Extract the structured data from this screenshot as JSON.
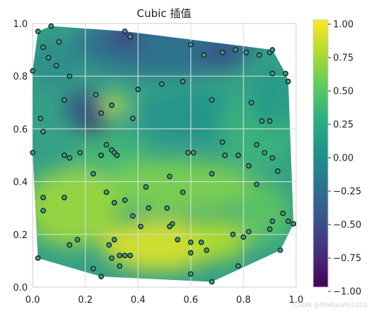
{
  "chart_data": {
    "type": "heatmap",
    "title": "Cubic 插值",
    "xlim": [
      0.0,
      1.0
    ],
    "ylim": [
      0.0,
      1.0
    ],
    "x_ticks": [
      "0.0",
      "0.2",
      "0.4",
      "0.6",
      "0.8",
      "1.0"
    ],
    "y_ticks": [
      "0.0",
      "0.2",
      "0.4",
      "0.6",
      "0.8",
      "1.0"
    ],
    "grid": true,
    "colormap": "viridis",
    "colorbar": {
      "range": [
        -1.0,
        1.0
      ],
      "ticks": [
        "1.00",
        "0.75",
        "0.50",
        "0.25",
        "0.00",
        "−0.25",
        "−0.50",
        "−0.75",
        "−1.00"
      ]
    },
    "points": [
      [
        0.02,
        0.97
      ],
      [
        0.07,
        0.99
      ],
      [
        0.04,
        0.91
      ],
      [
        0.06,
        0.87
      ],
      [
        0.09,
        0.84
      ],
      [
        0.1,
        0.93
      ],
      [
        0.0,
        0.82
      ],
      [
        0.14,
        0.8
      ],
      [
        0.35,
        0.97
      ],
      [
        0.37,
        0.95
      ],
      [
        0.6,
        0.92
      ],
      [
        0.65,
        0.88
      ],
      [
        0.72,
        0.89
      ],
      [
        0.77,
        0.9
      ],
      [
        0.81,
        0.89
      ],
      [
        0.86,
        0.88
      ],
      [
        0.9,
        0.89
      ],
      [
        0.91,
        0.9
      ],
      [
        0.96,
        0.81
      ],
      [
        0.91,
        0.81
      ],
      [
        0.97,
        0.78
      ],
      [
        0.12,
        0.71
      ],
      [
        0.24,
        0.73
      ],
      [
        0.26,
        0.66
      ],
      [
        0.3,
        0.69
      ],
      [
        0.38,
        0.64
      ],
      [
        0.4,
        0.75
      ],
      [
        0.49,
        0.77
      ],
      [
        0.57,
        0.78
      ],
      [
        0.68,
        0.71
      ],
      [
        0.83,
        0.7
      ],
      [
        0.87,
        0.63
      ],
      [
        0.9,
        0.63
      ],
      [
        0.03,
        0.64
      ],
      [
        0.04,
        0.59
      ],
      [
        0.0,
        0.51
      ],
      [
        0.26,
        0.5
      ],
      [
        0.28,
        0.54
      ],
      [
        0.3,
        0.52
      ],
      [
        0.31,
        0.51
      ],
      [
        0.32,
        0.5
      ],
      [
        0.12,
        0.5
      ],
      [
        0.18,
        0.51
      ],
      [
        0.14,
        0.49
      ],
      [
        0.23,
        0.43
      ],
      [
        0.52,
        0.42
      ],
      [
        0.59,
        0.51
      ],
      [
        0.61,
        0.51
      ],
      [
        0.72,
        0.55
      ],
      [
        0.73,
        0.5
      ],
      [
        0.78,
        0.5
      ],
      [
        0.82,
        0.46
      ],
      [
        0.85,
        0.54
      ],
      [
        0.88,
        0.51
      ],
      [
        0.91,
        0.49
      ],
      [
        0.93,
        0.44
      ],
      [
        0.85,
        0.39
      ],
      [
        0.68,
        0.43
      ],
      [
        0.57,
        0.36
      ],
      [
        0.43,
        0.38
      ],
      [
        0.28,
        0.36
      ],
      [
        0.31,
        0.32
      ],
      [
        0.35,
        0.33
      ],
      [
        0.04,
        0.34
      ],
      [
        0.04,
        0.29
      ],
      [
        0.12,
        0.34
      ],
      [
        0.38,
        0.27
      ],
      [
        0.41,
        0.23
      ],
      [
        0.44,
        0.3
      ],
      [
        0.51,
        0.3
      ],
      [
        0.53,
        0.24
      ],
      [
        0.52,
        0.23
      ],
      [
        0.55,
        0.18
      ],
      [
        0.6,
        0.17
      ],
      [
        0.64,
        0.17
      ],
      [
        0.6,
        0.13
      ],
      [
        0.66,
        0.14
      ],
      [
        0.76,
        0.2
      ],
      [
        0.8,
        0.19
      ],
      [
        0.82,
        0.21
      ],
      [
        0.9,
        0.22
      ],
      [
        0.91,
        0.25
      ],
      [
        0.95,
        0.28
      ],
      [
        0.97,
        0.25
      ],
      [
        0.99,
        0.24
      ],
      [
        0.94,
        0.14
      ],
      [
        0.14,
        0.16
      ],
      [
        0.17,
        0.18
      ],
      [
        0.31,
        0.18
      ],
      [
        0.29,
        0.16
      ],
      [
        0.3,
        0.11
      ],
      [
        0.33,
        0.12
      ],
      [
        0.35,
        0.12
      ],
      [
        0.37,
        0.12
      ],
      [
        0.33,
        0.08
      ],
      [
        0.23,
        0.07
      ],
      [
        0.26,
        0.04
      ],
      [
        0.02,
        0.11
      ],
      [
        0.6,
        0.05
      ],
      [
        0.68,
        0.02
      ],
      [
        0.78,
        0.08
      ]
    ]
  },
  "watermark": "CSDN @MoRanzhi1203"
}
